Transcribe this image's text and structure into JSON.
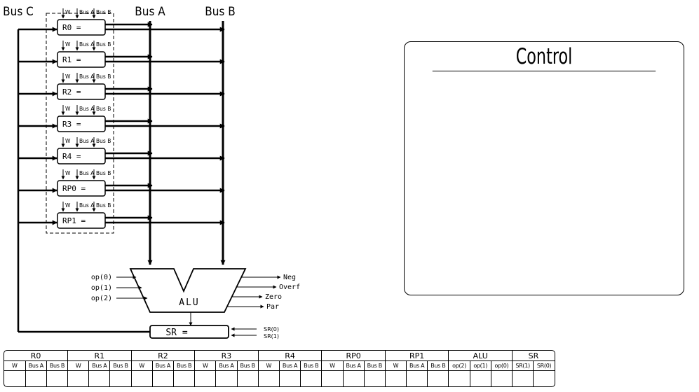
{
  "bus_labels": {
    "a": "Bus A",
    "b": "Bus B",
    "c": "Bus C"
  },
  "signal_labels": {
    "w": "W",
    "bus_a": "Bus A",
    "bus_b": "Bus B"
  },
  "registers": [
    {
      "id": "r0",
      "label": "R0 ="
    },
    {
      "id": "r1",
      "label": "R1 ="
    },
    {
      "id": "r2",
      "label": "R2 ="
    },
    {
      "id": "r3",
      "label": "R3 ="
    },
    {
      "id": "r4",
      "label": "R4 ="
    },
    {
      "id": "rp0",
      "label": "RP0 ="
    },
    {
      "id": "rp1",
      "label": "RP1 ="
    }
  ],
  "alu": {
    "label": "ALU",
    "inputs": [
      "op(0)",
      "op(1)",
      "op(2)"
    ],
    "outputs": [
      "Neg",
      "Overf",
      "Zero",
      "Par"
    ]
  },
  "sr": {
    "label": "SR =",
    "inputs": [
      "SR(0)",
      "SR(1)"
    ]
  },
  "control": {
    "title": "Control"
  },
  "control_table": {
    "groups": [
      {
        "name": "R0",
        "signals": [
          "W",
          "Bus A",
          "Bus B"
        ]
      },
      {
        "name": "R1",
        "signals": [
          "W",
          "Bus A",
          "Bus B"
        ]
      },
      {
        "name": "R2",
        "signals": [
          "W",
          "Bus A",
          "Bus B"
        ]
      },
      {
        "name": "R3",
        "signals": [
          "W",
          "Bus A",
          "Bus B"
        ]
      },
      {
        "name": "R4",
        "signals": [
          "W",
          "Bus A",
          "Bus B"
        ]
      },
      {
        "name": "RP0",
        "signals": [
          "W",
          "Bus A",
          "Bus B"
        ]
      },
      {
        "name": "RP1",
        "signals": [
          "W",
          "Bus A",
          "Bus B"
        ]
      },
      {
        "name": "ALU",
        "signals": [
          "op(2)",
          "op(1)",
          "op(0)"
        ]
      },
      {
        "name": "SR",
        "signals": [
          "SR(1)",
          "SR(0)"
        ]
      }
    ]
  }
}
